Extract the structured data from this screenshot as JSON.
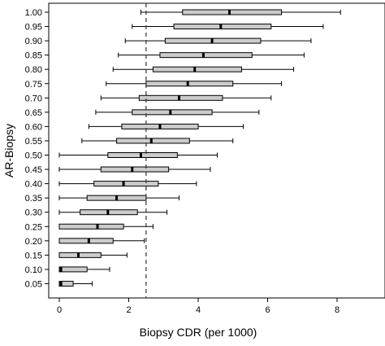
{
  "chart_data": {
    "type": "box",
    "orientation": "horizontal",
    "xlabel": "Biopsy CDR (per 1000)",
    "ylabel": "AR-Biopsy",
    "xlim": [
      -0.5,
      9.5
    ],
    "xticks": [
      0,
      2,
      4,
      6,
      8
    ],
    "grid": false,
    "reference_line": {
      "x": 2.5,
      "style": "dashed"
    },
    "box_fill": "#cccccc",
    "categories": [
      "1.00",
      "0.95",
      "0.90",
      "0.85",
      "0.80",
      "0.75",
      "0.70",
      "0.65",
      "0.60",
      "0.55",
      "0.50",
      "0.45",
      "0.40",
      "0.35",
      "0.30",
      "0.25",
      "0.20",
      "0.15",
      "0.10",
      "0.05"
    ],
    "series": [
      {
        "min": 2.35,
        "q1": 3.55,
        "median": 4.9,
        "q3": 6.4,
        "max": 8.1
      },
      {
        "min": 2.1,
        "q1": 3.3,
        "median": 4.65,
        "q3": 6.1,
        "max": 7.6
      },
      {
        "min": 1.9,
        "q1": 3.05,
        "median": 4.4,
        "q3": 5.8,
        "max": 7.25
      },
      {
        "min": 1.7,
        "q1": 2.9,
        "median": 4.15,
        "q3": 5.55,
        "max": 7.05
      },
      {
        "min": 1.55,
        "q1": 2.7,
        "median": 3.9,
        "q3": 5.25,
        "max": 6.75
      },
      {
        "min": 1.35,
        "q1": 2.5,
        "median": 3.7,
        "q3": 5.0,
        "max": 6.4
      },
      {
        "min": 1.2,
        "q1": 2.3,
        "median": 3.45,
        "q3": 4.7,
        "max": 6.1
      },
      {
        "min": 1.05,
        "q1": 2.1,
        "median": 3.2,
        "q3": 4.4,
        "max": 5.75
      },
      {
        "min": 0.85,
        "q1": 1.8,
        "median": 2.9,
        "q3": 4.0,
        "max": 5.3
      },
      {
        "min": 0.65,
        "q1": 1.65,
        "median": 2.65,
        "q3": 3.75,
        "max": 5.0
      },
      {
        "min": 0.0,
        "q1": 1.4,
        "median": 2.35,
        "q3": 3.4,
        "max": 4.55
      },
      {
        "min": 0.0,
        "q1": 1.2,
        "median": 2.1,
        "q3": 3.15,
        "max": 4.35
      },
      {
        "min": 0.0,
        "q1": 1.0,
        "median": 1.85,
        "q3": 2.85,
        "max": 3.95
      },
      {
        "min": 0.0,
        "q1": 0.8,
        "median": 1.65,
        "q3": 2.5,
        "max": 3.45
      },
      {
        "min": 0.0,
        "q1": 0.6,
        "median": 1.4,
        "q3": 2.25,
        "max": 3.1
      },
      {
        "min": 0.0,
        "q1": 0.0,
        "median": 1.1,
        "q3": 1.85,
        "max": 2.7
      },
      {
        "min": 0.0,
        "q1": 0.0,
        "median": 0.85,
        "q3": 1.55,
        "max": 2.45
      },
      {
        "min": 0.0,
        "q1": 0.0,
        "median": 0.55,
        "q3": 1.2,
        "max": 1.95
      },
      {
        "min": 0.0,
        "q1": 0.0,
        "median": 0.05,
        "q3": 0.8,
        "max": 1.45
      },
      {
        "min": 0.0,
        "q1": 0.0,
        "median": 0.05,
        "q3": 0.4,
        "max": 0.95
      }
    ]
  }
}
